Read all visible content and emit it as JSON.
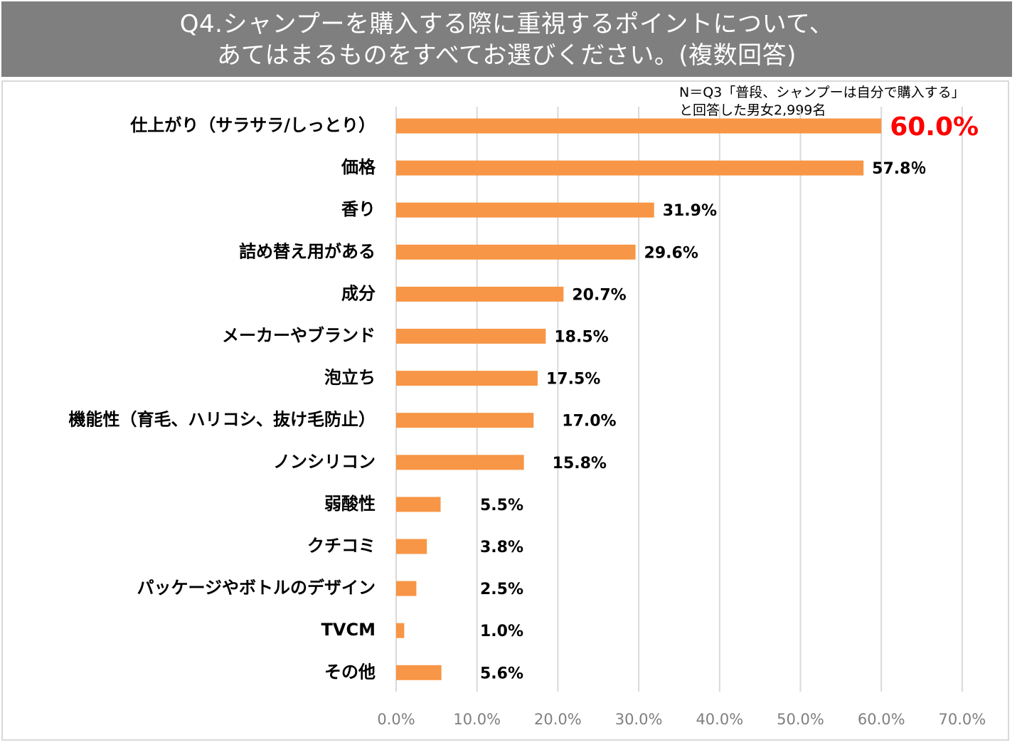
{
  "header": {
    "line1": "Q4.シャンプーを購入する際に重視するポイントについて、",
    "line2": "あてはまるものをすべてお選びください。(複数回答)"
  },
  "note": {
    "line1": "N＝Q3「普段、シャンプーは自分で購入する」",
    "line2": "と回答した男女2,999名"
  },
  "chart_data": {
    "type": "bar",
    "orientation": "horizontal",
    "categories": [
      "仕上がり（サラサラ/しっとり）",
      "価格",
      "香り",
      "詰め替え用がある",
      "成分",
      "メーカーやブランド",
      "泡立ち",
      "機能性（育毛、ハリコシ、抜け毛防止）",
      "ノンシリコン",
      "弱酸性",
      "クチコミ",
      "パッケージやボトルのデザイン",
      "TVCM",
      "その他"
    ],
    "values": [
      60.0,
      57.8,
      31.9,
      29.6,
      20.7,
      18.5,
      17.5,
      17.0,
      15.8,
      5.5,
      3.8,
      2.5,
      1.0,
      5.6
    ],
    "value_labels": [
      "60.0%",
      "57.8％",
      "31.9%",
      "29.6%",
      "20.7%",
      "18.5%",
      "17.5%",
      "17.0%",
      "15.8%",
      "5.5%",
      "3.8%",
      "2.5%",
      "1.0%",
      "5.6%"
    ],
    "highlight_index": 0,
    "xlim": [
      0,
      70
    ],
    "x_ticks": [
      "0.0%",
      "10.0%",
      "20.0%",
      "30.0%",
      "40.0%",
      "50.0%",
      "60.0%",
      "70.0%"
    ],
    "grid": true,
    "bar_color": "#f79646",
    "highlight_label_color": "#ff0000",
    "grid_color": "#d9d9d9",
    "header_color": "#7f7f7f"
  }
}
